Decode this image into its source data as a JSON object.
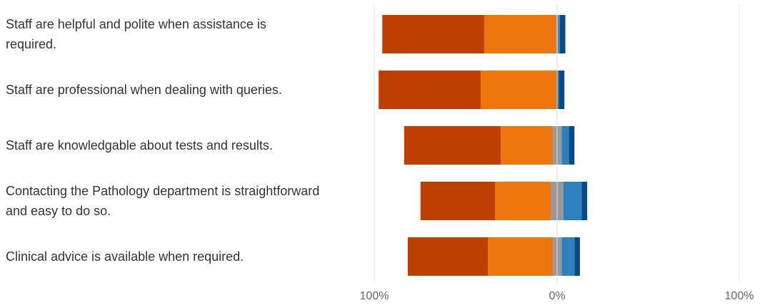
{
  "chart_data": {
    "type": "bar",
    "orientation": "horizontal",
    "stacked": "diverging",
    "categories": [
      "Staff are helpful and polite when assistance is required.",
      "Staff are professional when dealing with queries.",
      "Staff are knowledgable about tests and results.",
      "Contacting the Pathology department is straightforward and easy to do so.",
      "Clinical advice is available when required."
    ],
    "series": [
      {
        "values": [
          56,
          56,
          53,
          41,
          44
        ],
        "color": "#bf3f00",
        "side": "negative"
      },
      {
        "values": [
          40,
          42,
          31,
          34,
          38
        ],
        "color": "#ee760d",
        "side": "negative"
      },
      {
        "values": [
          1,
          0,
          5,
          7,
          5
        ],
        "color": "#999999",
        "side": "neutral"
      },
      {
        "values": [
          1,
          1,
          4,
          10,
          7
        ],
        "color": "#2f7fbf",
        "side": "positive"
      },
      {
        "values": [
          3,
          3,
          3,
          3,
          3
        ],
        "color": "#0a4a84",
        "side": "positive"
      }
    ],
    "x_ticks": [
      "100%",
      "0%",
      "100%"
    ],
    "xlim": [
      -100,
      100
    ],
    "grid": false,
    "legend": "none"
  }
}
